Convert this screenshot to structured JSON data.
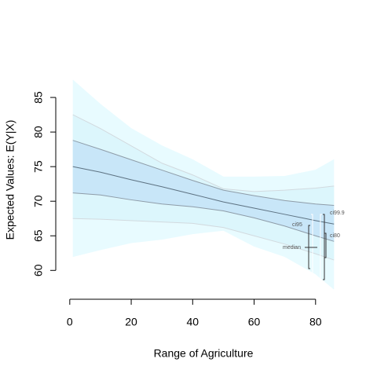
{
  "chart_data": {
    "type": "band",
    "x_label": "Range of Agriculture",
    "y_label": "Expected Values: E(Y|X)",
    "x": [
      1,
      10,
      20,
      30,
      40,
      50,
      60,
      70,
      80,
      86
    ],
    "bands": [
      {
        "name": "ci99.9",
        "color": "#e8fbff",
        "line_color": "#e8fbff",
        "upper": [
          87.5,
          84,
          80.5,
          78,
          76,
          73.5,
          73.5,
          73.6,
          74.5,
          76
        ],
        "lower": [
          62,
          63,
          64,
          64.5,
          65.3,
          65.8,
          63.5,
          62,
          59.5,
          57.3
        ]
      },
      {
        "name": "ci95",
        "color": "#dcf6fc",
        "line_color": "#d2dadf",
        "upper": [
          82.5,
          80.5,
          78,
          75.5,
          73.8,
          71.8,
          71.4,
          71.6,
          71.9,
          72.2
        ],
        "lower": [
          67.5,
          67.4,
          67.2,
          67,
          66.8,
          66.2,
          65,
          63.8,
          62.4,
          61.5
        ]
      },
      {
        "name": "ci80",
        "color": "#c8e6f8",
        "line_color": "#8e9ca8",
        "upper": [
          78.8,
          77.5,
          76,
          74.5,
          73,
          71.6,
          70.8,
          70.1,
          69.6,
          69.4
        ],
        "lower": [
          71.2,
          70.9,
          70.2,
          69.6,
          69.2,
          68.6,
          67.6,
          66.4,
          65,
          64.2
        ]
      }
    ],
    "series": [
      {
        "name": "median",
        "color": "#5d7282",
        "values": [
          75,
          74.2,
          73.1,
          72.1,
          71,
          69.9,
          69,
          68.1,
          67.2,
          66.7
        ]
      }
    ],
    "xlim": [
      -2,
      89
    ],
    "ylim": [
      56.4,
      88.3
    ],
    "xticks": [
      0,
      20,
      40,
      60,
      80
    ],
    "yticks": [
      60,
      65,
      70,
      75,
      80,
      85
    ]
  }
}
